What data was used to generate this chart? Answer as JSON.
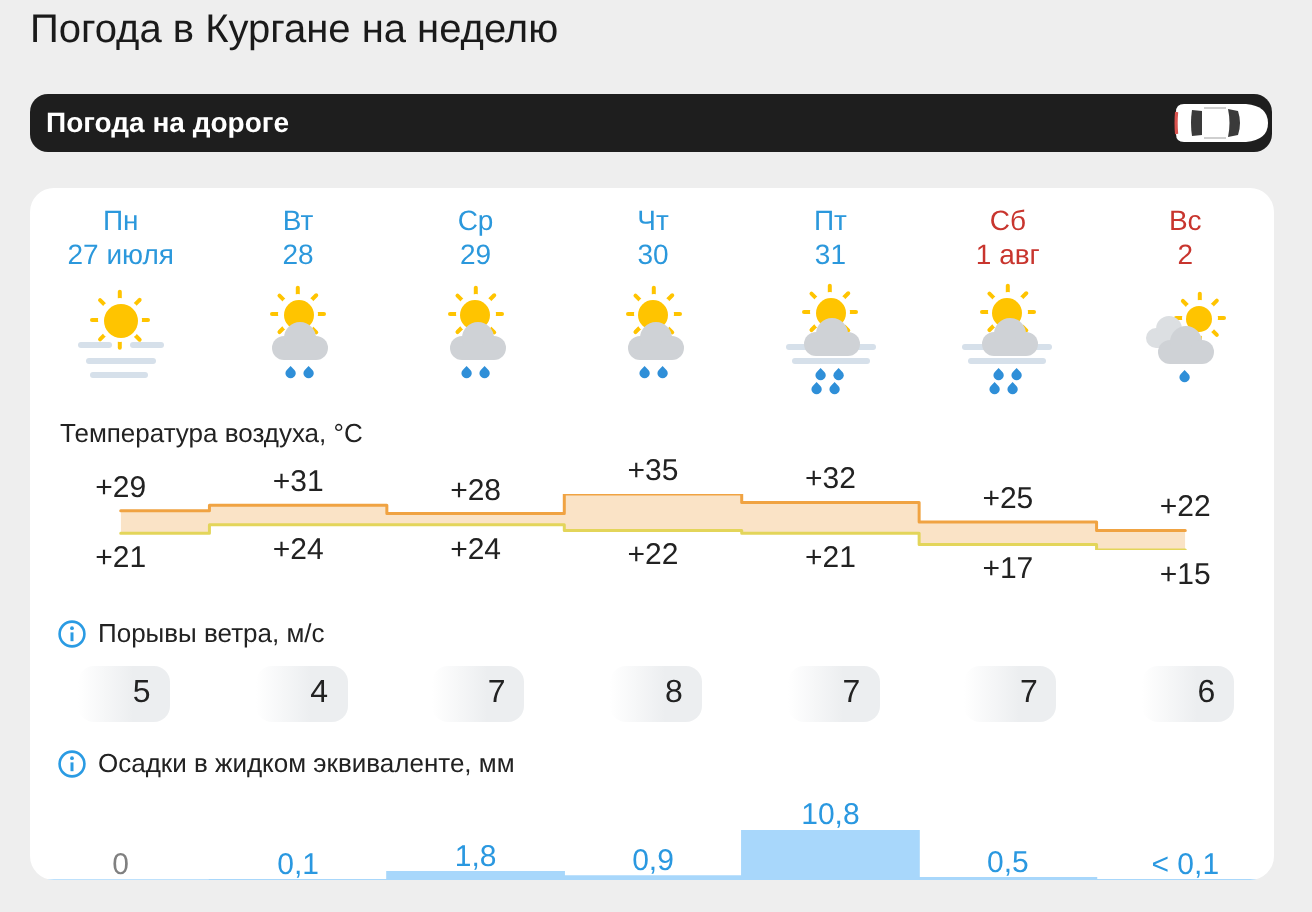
{
  "chart_data": [
    {
      "type": "other",
      "title": "Погода в Кургане на неделю",
      "annotations": [
        "Погода на дороге"
      ]
    },
    {
      "type": "step",
      "title": "Температура воздуха, °C",
      "categories": [
        "Пн\n27 июля",
        "Вт\n28",
        "Ср\n29",
        "Чт\n30",
        "Пт\n31",
        "Сб\n1 авг",
        "Вс\n2"
      ],
      "series": [
        {
          "values": [
            29,
            31,
            28,
            35,
            32,
            25,
            22
          ],
          "value_labels": [
            "+29",
            "+31",
            "+28",
            "+35",
            "+32",
            "+25",
            "+22"
          ],
          "color": "#f0a342",
          "lower": [
            21,
            24,
            24,
            22,
            21,
            17,
            15
          ],
          "upper": [
            29,
            31,
            28,
            35,
            32,
            25,
            22
          ]
        },
        {
          "values": [
            21,
            24,
            24,
            22,
            21,
            17,
            15
          ],
          "value_labels": [
            "+21",
            "+24",
            "+24",
            "+22",
            "+21",
            "+17",
            "+15"
          ],
          "color": "#e3d55a"
        }
      ],
      "tick_labels": "x"
    },
    {
      "type": "other",
      "title": "Порывы ветра, м/с",
      "values": [
        5,
        4,
        7,
        8,
        7,
        7,
        6
      ],
      "data_labels": true
    },
    {
      "type": "bar",
      "title": "Осадки в жидком эквиваленте, мм",
      "categories": [
        null,
        null,
        null,
        null,
        null,
        null,
        null
      ],
      "values": [
        0,
        0.1,
        1.8,
        0.9,
        10.8,
        0.5,
        0.05
      ],
      "value_labels": [
        "0",
        "0,1",
        "1,8",
        "0,9",
        "10,8",
        "0,5",
        "< 0,1"
      ],
      "color": "#a8d7fb"
    }
  ]
}
